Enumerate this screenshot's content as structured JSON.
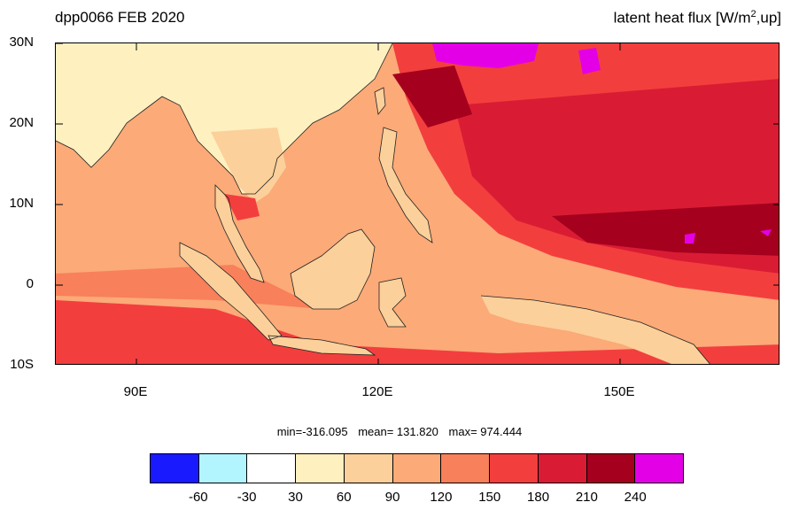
{
  "title_left": "dpp0066 FEB 2020",
  "title_right_main": "latent heat flux [W/m",
  "title_right_sup": "2",
  "title_right_tail": ",up]",
  "lat_labels": [
    "30N",
    "20N",
    "10N",
    "0",
    "10S"
  ],
  "lon_labels": [
    "90E",
    "120E",
    "150E"
  ],
  "stats": {
    "min": "min=-316.095",
    "mean": "mean= 131.820",
    "max": "max= 974.444"
  },
  "colorbar": {
    "colors": [
      "#1a1aff",
      "#b3f5ff",
      "#ffffff",
      "#fff0c0",
      "#fcd09a",
      "#fbaa78",
      "#f8805a",
      "#f33e3e",
      "#d91c34",
      "#a5001e",
      "#e400e6"
    ],
    "labels": [
      "-60",
      "-30",
      "30",
      "60",
      "90",
      "120",
      "150",
      "180",
      "210",
      "240"
    ]
  },
  "map_colors": {
    "land": "#fff0c0",
    "land_warm": "#fcd09a",
    "ocean_base": "#fbaa78",
    "ocean_mid": "#f8805a",
    "ocean_high": "#f33e3e",
    "ocean_higher": "#d91c34",
    "ocean_max": "#a5001e",
    "extreme": "#e400e6"
  }
}
